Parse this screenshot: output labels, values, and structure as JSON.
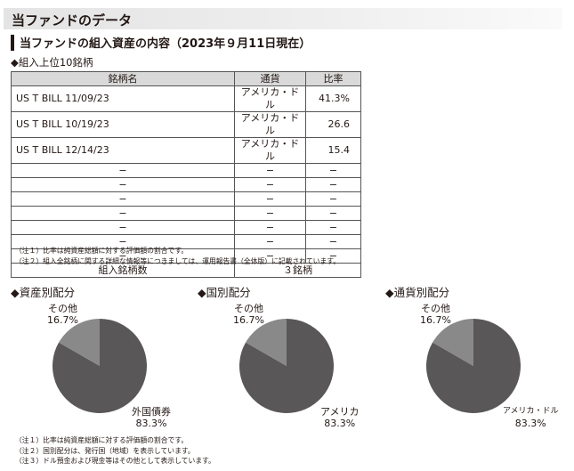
{
  "header": {
    "title": "当ファンドのデータ"
  },
  "section": {
    "title": "当ファンドの組入資産の内容（2023年９月11日現在）"
  },
  "top10": {
    "title": "◆組入上位10銘柄",
    "columns": [
      "銘柄名",
      "通貨",
      "比率"
    ],
    "rows": [
      [
        "US T BILL 11/09/23",
        "アメリカ・ドル",
        "41.3%"
      ],
      [
        "US T BILL 10/19/23",
        "アメリカ・ドル",
        "26.6"
      ],
      [
        "US T BILL 12/14/23",
        "アメリカ・ドル",
        "15.4"
      ],
      [
        "−",
        "−",
        "−"
      ],
      [
        "−",
        "−",
        "−"
      ],
      [
        "−",
        "−",
        "−"
      ],
      [
        "−",
        "−",
        "−"
      ],
      [
        "−",
        "−",
        "−"
      ],
      [
        "−",
        "−",
        "−"
      ],
      [
        "−",
        "−",
        "−"
      ]
    ],
    "count_label": "組入銘柄数",
    "count_value": "３銘柄",
    "notes": [
      "（注１）比率は純資産総額に対する評価額の割合です。",
      "（注２）組入全銘柄に関する詳細な情報等につきましては、運用報告書（全体版）に記載されています。"
    ]
  },
  "chart_data": [
    {
      "type": "pie",
      "title": "◆資産別配分",
      "labels": [
        "外国債券",
        "その他"
      ],
      "values": [
        83.3,
        16.7
      ],
      "value_labels": [
        "83.3%",
        "16.7%"
      ],
      "colors": [
        "#595757",
        "#898989"
      ]
    },
    {
      "type": "pie",
      "title": "◆国別配分",
      "labels": [
        "アメリカ",
        "その他"
      ],
      "values": [
        83.3,
        16.7
      ],
      "value_labels": [
        "83.3%",
        "16.7%"
      ],
      "colors": [
        "#595757",
        "#898989"
      ]
    },
    {
      "type": "pie",
      "title": "◆通貨別配分",
      "labels": [
        "アメリカ・ドル",
        "その他"
      ],
      "values": [
        83.3,
        16.7
      ],
      "value_labels": [
        "83.3%",
        "16.7%"
      ],
      "colors": [
        "#595757",
        "#898989"
      ]
    }
  ],
  "bottom_notes": [
    "（注１）比率は純資産総額に対する評価額の割合です。",
    "（注２）国別配分は、発行国（地域）を表示しています。",
    "（注３）ドル預金および現金等はその他として表示しています。"
  ]
}
